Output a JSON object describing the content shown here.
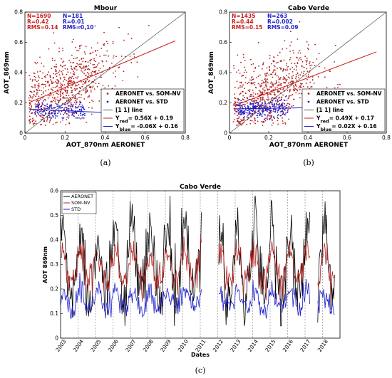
{
  "chart_data": [
    {
      "type": "scatter",
      "panel_label": "(a)",
      "title": "Mbour",
      "xlabel": "AOT_870nm AERONET",
      "ylabel": "AOT_869nm",
      "xlim": [
        0,
        0.8
      ],
      "ylim": [
        0,
        0.8
      ],
      "xticks": [
        "0",
        "0.2",
        "0.4",
        "0.6",
        "0.8"
      ],
      "yticks": [
        "0",
        "0.2",
        "0.4",
        "0.6",
        "0.8"
      ],
      "stats": [
        {
          "lines": [
            "N=1690",
            "R=0.42",
            "RMS=0.14"
          ],
          "color": "#cc1f1f"
        },
        {
          "lines": [
            "N=181",
            "R=0.01",
            "RMS=0.10"
          ],
          "color": "#1f1fcc"
        }
      ],
      "legend": [
        {
          "label": "AERONET vs. SOM-NV",
          "color": "#b22222",
          "kind": "dot"
        },
        {
          "label": "AERONET vs. STD",
          "color": "#1f1fcc",
          "kind": "dot"
        },
        {
          "label": "[1 1] line",
          "color": "#555555",
          "kind": "line"
        },
        {
          "label": "Y",
          "sub": "red",
          "rest": "= 0.56X + 0.19",
          "color": "#cc1f1f",
          "kind": "line"
        },
        {
          "label": "Y",
          "sub": "blue",
          "rest": "= -0.06X + 0.16",
          "color": "#1f1fcc",
          "kind": "line"
        }
      ],
      "series": [
        {
          "name": "AERONET vs. SOM-NV",
          "color": "#b22222",
          "n": 1690,
          "x_range": [
            0.02,
            0.75
          ],
          "y_range": [
            0.05,
            0.75
          ]
        },
        {
          "name": "AERONET vs. STD",
          "color": "#1f1fcc",
          "n": 181,
          "x_range": [
            0.05,
            0.3
          ],
          "y_range": [
            0.1,
            0.25
          ]
        }
      ],
      "fits": [
        {
          "slope": 0.56,
          "intercept": 0.19,
          "color": "#cc1f1f"
        },
        {
          "slope": -0.06,
          "intercept": 0.16,
          "color": "#1f1fcc"
        }
      ]
    },
    {
      "type": "scatter",
      "panel_label": "(b)",
      "title": "Cabo Verde",
      "xlabel": "AOT_870nm AERONET",
      "ylabel": "AOT_869nm",
      "xlim": [
        0,
        0.8
      ],
      "ylim": [
        0,
        0.8
      ],
      "xticks": [
        "0",
        "0.2",
        "0.4",
        "0.6",
        "0.8"
      ],
      "yticks": [
        "0",
        "0.2",
        "0.4",
        "0.6",
        "0.8"
      ],
      "stats": [
        {
          "lines": [
            "N=1435",
            "R=0.44",
            "RMS=0.15"
          ],
          "color": "#cc1f1f"
        },
        {
          "lines": [
            "N=263",
            "R=0.002",
            "RMS=0.09"
          ],
          "color": "#1f1fcc"
        }
      ],
      "legend": [
        {
          "label": "AERONET vs. SOM-NV",
          "color": "#b22222",
          "kind": "dot"
        },
        {
          "label": "AERONET vs. STD",
          "color": "#1f1fcc",
          "kind": "dot"
        },
        {
          "label": "[1 1] line",
          "color": "#555555",
          "kind": "line"
        },
        {
          "label": "Y",
          "sub": "red",
          "rest": "= 0.49X + 0.17",
          "color": "#cc1f1f",
          "kind": "line"
        },
        {
          "label": "Y",
          "sub": "blue",
          "rest": "= 0.02X + 0.16",
          "color": "#1f1fcc",
          "kind": "line"
        }
      ],
      "series": [
        {
          "name": "AERONET vs. SOM-NV",
          "color": "#b22222",
          "n": 1435,
          "x_range": [
            0.02,
            0.75
          ],
          "y_range": [
            0.05,
            0.75
          ]
        },
        {
          "name": "AERONET vs. STD",
          "color": "#1f1fcc",
          "n": 263,
          "x_range": [
            0.04,
            0.3
          ],
          "y_range": [
            0.08,
            0.25
          ]
        }
      ],
      "fits": [
        {
          "slope": 0.49,
          "intercept": 0.17,
          "color": "#cc1f1f"
        },
        {
          "slope": 0.02,
          "intercept": 0.16,
          "color": "#1f1fcc"
        }
      ]
    },
    {
      "type": "line",
      "panel_label": "(c)",
      "title": "Cabo Verde",
      "xlabel": "Dates",
      "ylabel": "AOT 869nm",
      "ylim": [
        0,
        0.6
      ],
      "yticks": [
        "0",
        "0.1",
        "0.2",
        "0.3",
        "0.4",
        "0.5",
        "0.6"
      ],
      "xlim": [
        2003,
        2019
      ],
      "years": [
        "2003",
        "2004",
        "2005",
        "2006",
        "2007",
        "2008",
        "2009",
        "2010",
        "2011",
        "2012",
        "2013",
        "2014",
        "2015",
        "2016",
        "2017",
        "2018"
      ],
      "gaps": [
        [
          2011.1,
          2012.05
        ],
        [
          2017.3,
          2017.7
        ]
      ],
      "series": [
        {
          "name": "AERONET",
          "color": "#000000",
          "base": 0.28,
          "amp": 0.18,
          "noise": 0.07
        },
        {
          "name": "SOM-NV",
          "color": "#b22222",
          "base": 0.28,
          "amp": 0.08,
          "noise": 0.035
        },
        {
          "name": "STD",
          "color": "#1f1fcc",
          "base": 0.15,
          "amp": 0.04,
          "noise": 0.025
        }
      ]
    }
  ]
}
